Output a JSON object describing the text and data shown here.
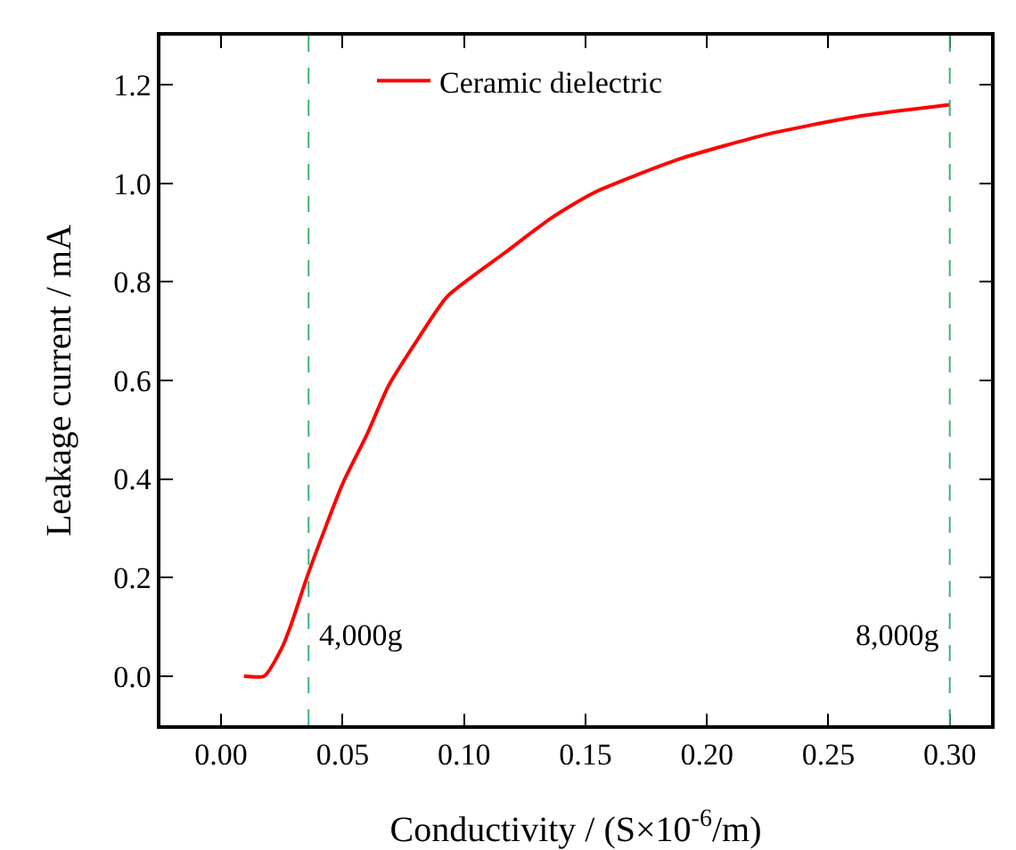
{
  "chart_data": {
    "type": "line",
    "xlabel": "Conductivity / (S×10$^{-6}$/m)",
    "ylabel": "Leakage current / mA",
    "xlim": [
      -0.025,
      0.317
    ],
    "ylim": [
      -0.1,
      1.3
    ],
    "xticks": [
      {
        "value": 0,
        "label": "0.00"
      },
      {
        "value": 0.05,
        "label": "0.05"
      },
      {
        "value": 0.1,
        "label": "0.10"
      },
      {
        "value": 0.15,
        "label": "0.15"
      },
      {
        "value": 0.2,
        "label": "0.20"
      },
      {
        "value": 0.25,
        "label": "0.25"
      },
      {
        "value": 0.3,
        "label": "0.30"
      }
    ],
    "yticks": [
      {
        "value": 0,
        "label": "0.0"
      },
      {
        "value": 0.2,
        "label": "0.2"
      },
      {
        "value": 0.4,
        "label": "0.4"
      },
      {
        "value": 0.6,
        "label": "0.6"
      },
      {
        "value": 0.8,
        "label": "0.8"
      },
      {
        "value": 1,
        "label": "1.0"
      },
      {
        "value": 1.2,
        "label": "1.2"
      }
    ],
    "grid": false,
    "legend": "top left",
    "marker": "none",
    "line_style": "solid",
    "x": [
      0.0094,
      0.0178,
      0.025,
      0.0285,
      0.036,
      0.05,
      0.06,
      0.069,
      0.081,
      0.093,
      0.117,
      0.136,
      0.153,
      0.189,
      0.225,
      0.261,
      0.3
    ],
    "series": [
      {
        "name": "Ceramic dielectric",
        "color": "#ff0000",
        "values": [
          0,
          0,
          0.057,
          0.1,
          0.21,
          0.39,
          0.49,
          0.59,
          0.684,
          0.77,
          0.86,
          0.93,
          0.98,
          1.05,
          1.1,
          1.135,
          1.16
        ]
      }
    ],
    "ref_lines": [
      {
        "axis": "x",
        "value": 0.036,
        "label": "4,000g",
        "color": "#3cb371",
        "line_style": "dashed"
      },
      {
        "axis": "x",
        "value": 0.3,
        "label": "8,000g",
        "color": "#3cb371",
        "line_style": "dashed"
      }
    ]
  }
}
